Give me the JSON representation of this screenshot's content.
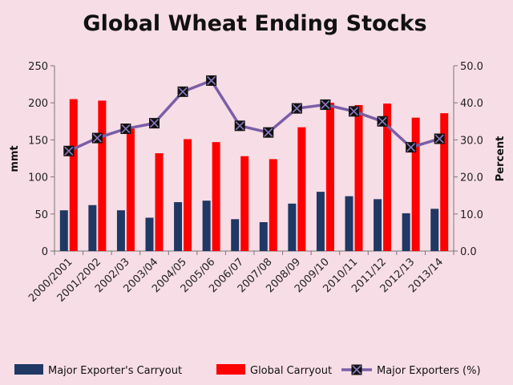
{
  "chart_data": {
    "type": "bar",
    "title": "Global Wheat Ending Stocks",
    "ylabel": "mmt",
    "y2label": "Percent",
    "ylim": [
      0,
      250
    ],
    "yticks": [
      "0",
      "50",
      "100",
      "150",
      "200",
      "250"
    ],
    "y2lim": [
      0,
      50
    ],
    "y2ticks": [
      "0.0",
      "10.0",
      "20.0",
      "30.0",
      "40.0",
      "50.0"
    ],
    "categories": [
      "2000/2001",
      "2001/2002",
      "2002/03",
      "2003/04",
      "2004/05",
      "2005/06",
      "2006/07",
      "2007/08",
      "2008/09",
      "2009/10",
      "2010/11",
      "2011/12",
      "2012/13",
      "2013/14"
    ],
    "series": [
      {
        "name": "Major Exporter's Carryout",
        "type": "bar",
        "axis": "left",
        "color": "#1f3864",
        "values": [
          55,
          62,
          55,
          45,
          66,
          68,
          43,
          39,
          64,
          80,
          74,
          70,
          51,
          57
        ]
      },
      {
        "name": "Global Carryout",
        "type": "bar",
        "axis": "left",
        "color": "#ff0000",
        "values": [
          205,
          203,
          168,
          132,
          151,
          147,
          128,
          124,
          167,
          200,
          197,
          199,
          180,
          186
        ]
      },
      {
        "name": "Major Exporters (%)",
        "type": "line",
        "axis": "right",
        "color": "#7b5ea7",
        "values": [
          27.0,
          30.5,
          33.0,
          34.5,
          43.0,
          46.0,
          33.8,
          32.0,
          38.5,
          39.5,
          37.7,
          35.0,
          28.0,
          30.3
        ]
      }
    ],
    "grid": false,
    "legend": "bottom"
  }
}
